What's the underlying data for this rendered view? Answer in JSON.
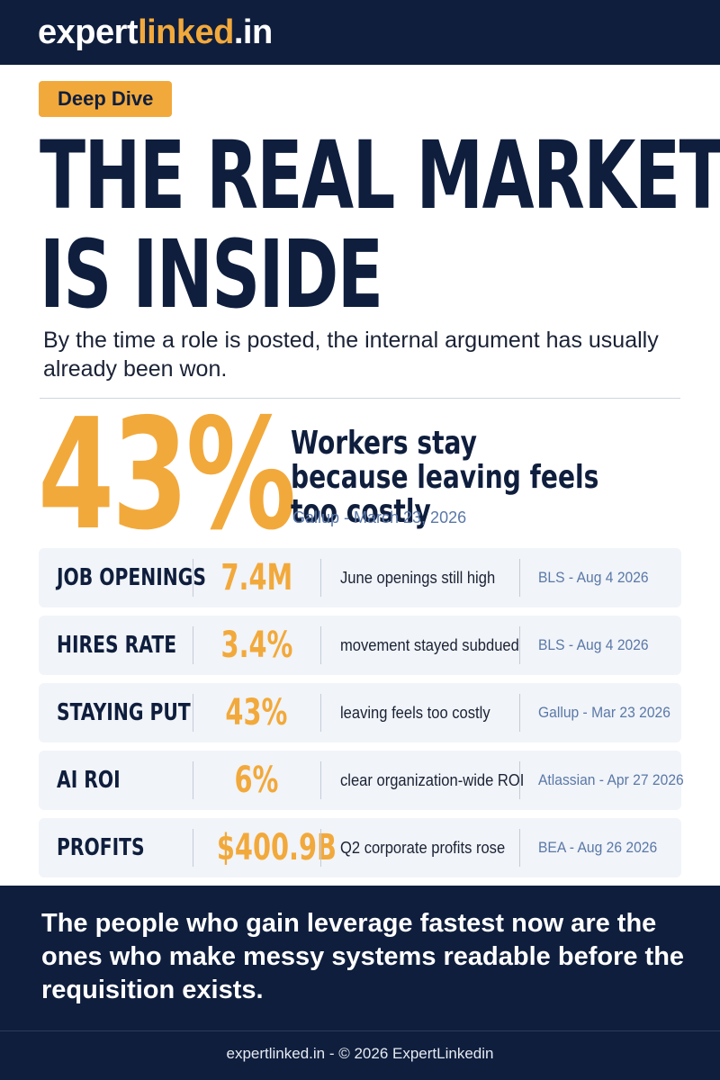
{
  "header": {
    "logo_part1": "expert",
    "logo_part2": "linked",
    "logo_part3": ".in"
  },
  "badge": "Deep Dive",
  "headline": {
    "line1": "THE REAL MARKET",
    "line2": "IS INSIDE"
  },
  "subtitle": "By the time a role is posted, the internal argument has usually already been won.",
  "highlight": {
    "value": "43%",
    "description": "Workers stay because leaving feels too costly",
    "source": "Gallup - March 23, 2026"
  },
  "stats": [
    {
      "label": "JOB OPENINGS",
      "value": "7.4M",
      "note": "June openings still high",
      "source": "BLS - Aug 4 2026"
    },
    {
      "label": "HIRES RATE",
      "value": "3.4%",
      "note": "movement stayed subdued",
      "source": "BLS - Aug 4 2026"
    },
    {
      "label": "STAYING PUT",
      "value": "43%",
      "note": "leaving feels too costly",
      "source": "Gallup - Mar 23 2026"
    },
    {
      "label": "AI ROI",
      "value": "6%",
      "note": "clear organization-wide ROI",
      "source": "Atlassian - Apr 27 2026"
    },
    {
      "label": "PROFITS",
      "value": "$400.9B",
      "note": "Q2 corporate profits rose",
      "source": "BEA - Aug 26 2026"
    }
  ],
  "quote": "The people who gain leverage fastest now are the ones who make messy systems readable before the requisition exists.",
  "footer": "expertlinked.in - © 2026 ExpertLinkedin",
  "colors": {
    "navy": "#0f1e3d",
    "accent": "#f2a93b",
    "source_blue": "#5a78a8",
    "row_bg": "#f1f4f8"
  }
}
